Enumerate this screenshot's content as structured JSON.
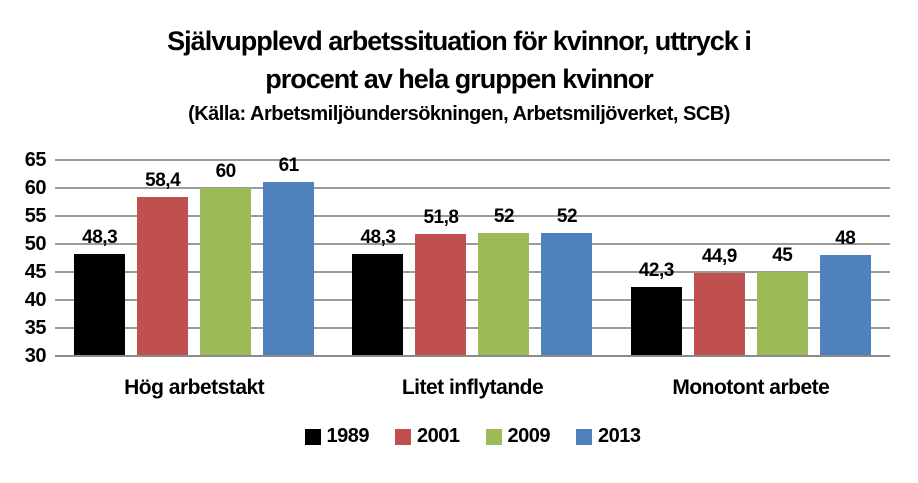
{
  "header": {
    "title_line1": "Självupplevd arbetssituation för kvinnor, uttryck i",
    "title_line2": "procent av hela gruppen kvinnor",
    "subtitle": "(Källa: Arbetsmiljöundersökningen, Arbetsmiljöverket, SCB)"
  },
  "chart_data": {
    "type": "bar",
    "title": "Självupplevd arbetssituation för kvinnor, uttryck i procent av hela gruppen kvinnor",
    "subtitle": "(Källa: Arbetsmiljöundersökningen, Arbetsmiljöverket, SCB)",
    "categories": [
      "Hög arbetstakt",
      "Litet inflytande",
      "Monotont arbete"
    ],
    "series": [
      {
        "name": "1989",
        "color": "#000000",
        "values": [
          48.3,
          48.3,
          42.3
        ],
        "labels": [
          "48,3",
          "48,3",
          "42,3"
        ]
      },
      {
        "name": "2001",
        "color": "#C0504D",
        "values": [
          58.4,
          51.8,
          44.9
        ],
        "labels": [
          "58,4",
          "51,8",
          "44,9"
        ]
      },
      {
        "name": "2009",
        "color": "#9BBB59",
        "values": [
          60,
          52,
          45
        ],
        "labels": [
          "60",
          "52",
          "45"
        ]
      },
      {
        "name": "2013",
        "color": "#4F81BD",
        "values": [
          61,
          52,
          48
        ],
        "labels": [
          "61",
          "52",
          "48"
        ]
      }
    ],
    "y_axis": {
      "min": 30,
      "max": 65,
      "step": 5,
      "ticks": [
        "65",
        "60",
        "55",
        "50",
        "45",
        "40",
        "35",
        "30"
      ]
    },
    "grid": true,
    "legend_position": "bottom",
    "colors": {
      "gridline": "#9a9a9a",
      "axis_line": "#8a8a8a",
      "text": "#000000",
      "background": "#ffffff"
    }
  }
}
